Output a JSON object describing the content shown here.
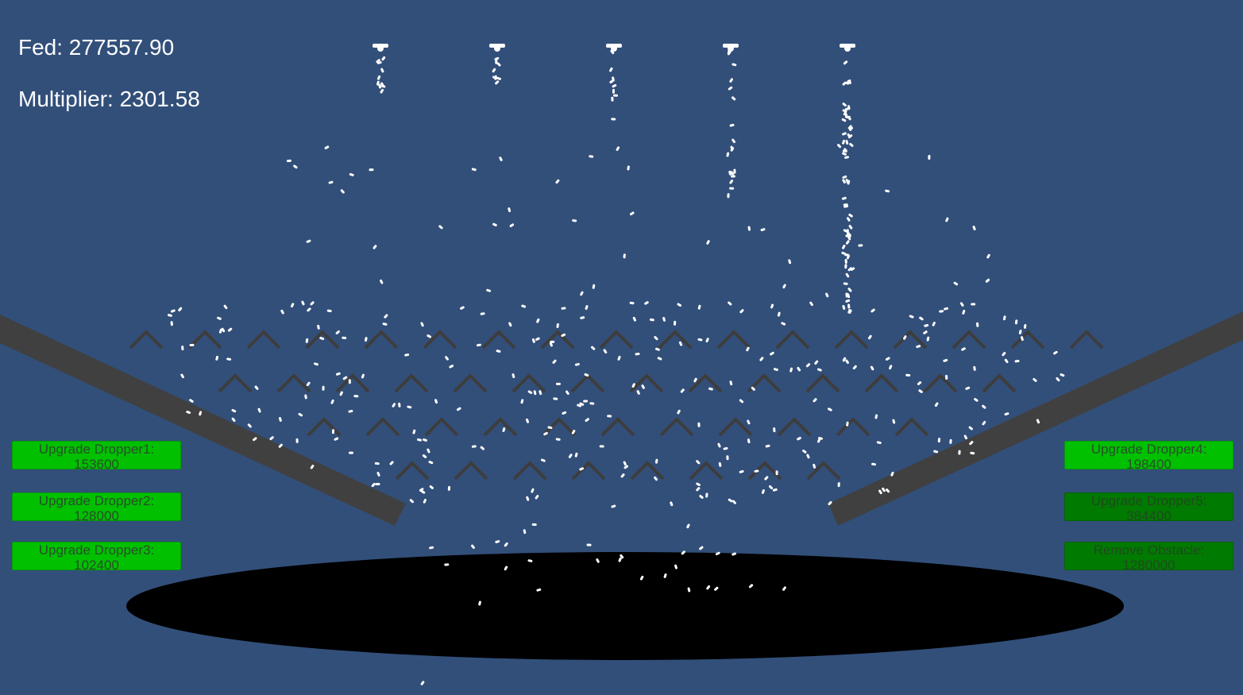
{
  "hud": {
    "fed": "Fed: 277557.90",
    "multiplier": "Multiplier: 2301.58"
  },
  "buttons": {
    "dropper1": {
      "line1": "Upgrade Dropper1:",
      "line2": "153600",
      "enabled": true
    },
    "dropper2": {
      "line1": "Upgrade Dropper2:",
      "line2": "128000",
      "enabled": true
    },
    "dropper3": {
      "line1": "Upgrade Dropper3:",
      "line2": "102400",
      "enabled": true
    },
    "dropper4": {
      "line1": "Upgrade Dropper4:",
      "line2": "198400",
      "enabled": true
    },
    "dropper5": {
      "line1": "Upgrade Dropper5:",
      "line2": "384400",
      "enabled": false
    },
    "obstacle": {
      "line1": "Remove Obstacle:",
      "line2": "1280000",
      "enabled": false
    }
  },
  "colors": {
    "background": "#324f7a",
    "ramp": "#404040",
    "peg": "#3d3d3d",
    "hole": "#000000",
    "particle": "#ffffff",
    "button_enabled": "#00c000",
    "button_disabled": "#007a00"
  },
  "droppers": [
    {
      "name": "dropper1-icon"
    },
    {
      "name": "dropper2-icon"
    },
    {
      "name": "dropper3-icon"
    },
    {
      "name": "dropper4-icon"
    },
    {
      "name": "dropper5-icon"
    }
  ]
}
